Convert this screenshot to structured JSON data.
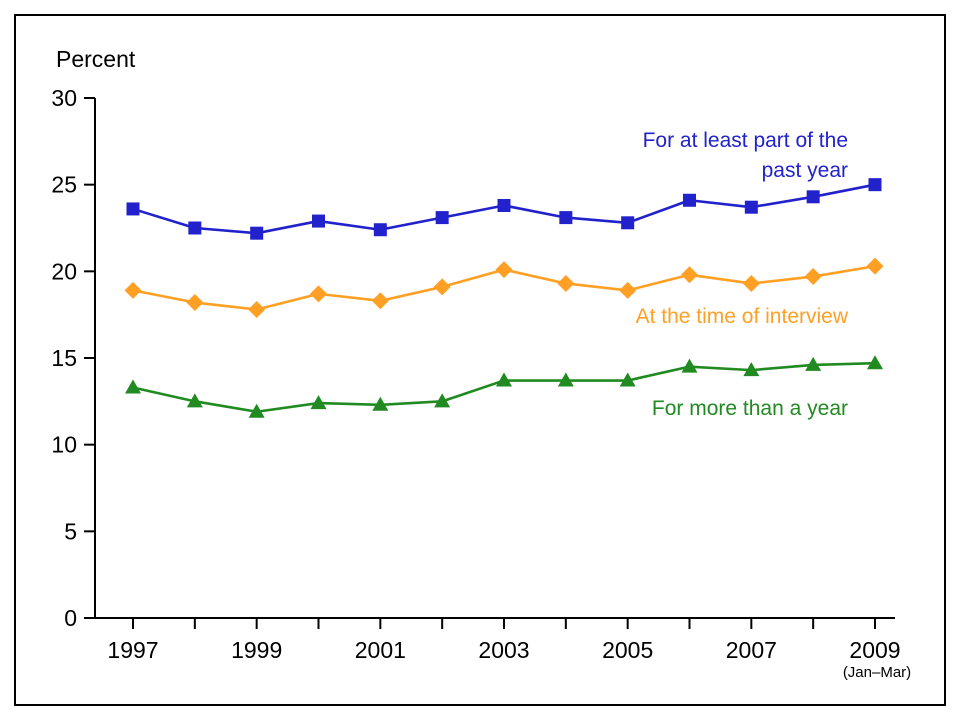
{
  "chart_data": {
    "type": "line",
    "title": "",
    "ylabel": "Percent",
    "xlabel": "",
    "x": [
      1997,
      1998,
      1999,
      2000,
      2001,
      2002,
      2003,
      2004,
      2005,
      2006,
      2007,
      2008,
      2009
    ],
    "x_tick_labels": [
      "1997",
      "",
      "1999",
      "",
      "2001",
      "",
      "2003",
      "",
      "2005",
      "",
      "2007",
      "",
      "2009"
    ],
    "x_note": "(Jan–Mar)",
    "ylim": [
      0,
      30
    ],
    "yticks": [
      0,
      5,
      10,
      15,
      20,
      25,
      30
    ],
    "grid": false,
    "legend_position": "inline-annotations",
    "series": [
      {
        "name": "For at least part of the past year",
        "marker": "square",
        "color": "#2222cc",
        "values": [
          23.6,
          22.5,
          22.2,
          22.9,
          22.4,
          23.1,
          23.8,
          23.1,
          22.8,
          24.1,
          23.7,
          24.3,
          25.0
        ]
      },
      {
        "name": "At the time of interview",
        "marker": "diamond",
        "color": "#ffa024",
        "values": [
          18.9,
          18.2,
          17.8,
          18.7,
          18.3,
          19.1,
          20.1,
          19.3,
          18.9,
          19.8,
          19.3,
          19.7,
          20.3
        ]
      },
      {
        "name": "For more than a year",
        "marker": "triangle",
        "color": "#218a21",
        "values": [
          13.3,
          12.5,
          11.9,
          12.4,
          12.3,
          12.5,
          13.7,
          13.7,
          13.7,
          14.5,
          14.3,
          14.6,
          14.7
        ]
      }
    ]
  }
}
